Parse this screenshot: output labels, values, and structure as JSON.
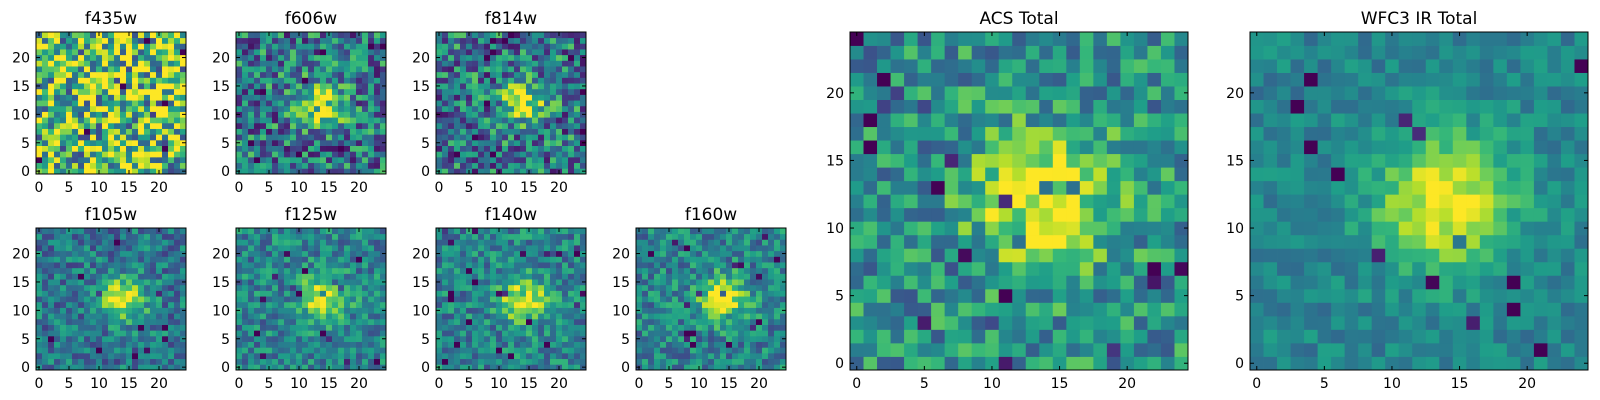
{
  "chart_data": [
    {
      "type": "heatmap",
      "title": "f435w",
      "xticks": [
        0,
        5,
        10,
        15,
        20
      ],
      "yticks": [
        0,
        5,
        10,
        15,
        20
      ],
      "xlim": [
        0,
        24
      ],
      "ylim": [
        0,
        24
      ],
      "grid_size": 25,
      "colormap": "viridis",
      "source_center": [
        14,
        12
      ],
      "peak_strength": 0.08,
      "noise": 0.5,
      "background_level": 0.7
    },
    {
      "type": "heatmap",
      "title": "f606w",
      "xticks": [
        0,
        5,
        10,
        15,
        20
      ],
      "yticks": [
        0,
        5,
        10,
        15,
        20
      ],
      "xlim": [
        0,
        24
      ],
      "ylim": [
        0,
        24
      ],
      "grid_size": 25,
      "colormap": "viridis",
      "source_center": [
        14,
        12
      ],
      "peak_strength": 0.55,
      "noise": 0.35,
      "background_level": 0.4
    },
    {
      "type": "heatmap",
      "title": "f814w",
      "xticks": [
        0,
        5,
        10,
        15,
        20
      ],
      "yticks": [
        0,
        5,
        10,
        15,
        20
      ],
      "xlim": [
        0,
        24
      ],
      "ylim": [
        0,
        24
      ],
      "grid_size": 25,
      "colormap": "viridis",
      "source_center": [
        14,
        12
      ],
      "peak_strength": 0.5,
      "noise": 0.35,
      "background_level": 0.4
    },
    {
      "type": "heatmap",
      "title": "f105w",
      "xticks": [
        0,
        5,
        10,
        15,
        20
      ],
      "yticks": [
        0,
        5,
        10,
        15,
        20
      ],
      "xlim": [
        0,
        24
      ],
      "ylim": [
        0,
        24
      ],
      "grid_size": 25,
      "colormap": "viridis",
      "source_center": [
        14,
        12
      ],
      "peak_strength": 0.6,
      "noise": 0.22,
      "background_level": 0.4
    },
    {
      "type": "heatmap",
      "title": "f125w",
      "xticks": [
        0,
        5,
        10,
        15,
        20
      ],
      "yticks": [
        0,
        5,
        10,
        15,
        20
      ],
      "xlim": [
        0,
        24
      ],
      "ylim": [
        0,
        24
      ],
      "grid_size": 25,
      "colormap": "viridis",
      "source_center": [
        14,
        12
      ],
      "peak_strength": 0.55,
      "noise": 0.22,
      "background_level": 0.45
    },
    {
      "type": "heatmap",
      "title": "f140w",
      "xticks": [
        0,
        5,
        10,
        15,
        20
      ],
      "yticks": [
        0,
        5,
        10,
        15,
        20
      ],
      "xlim": [
        0,
        24
      ],
      "ylim": [
        0,
        24
      ],
      "grid_size": 25,
      "colormap": "viridis",
      "source_center": [
        14,
        12
      ],
      "peak_strength": 0.6,
      "noise": 0.22,
      "background_level": 0.45
    },
    {
      "type": "heatmap",
      "title": "f160w",
      "xticks": [
        0,
        5,
        10,
        15,
        20
      ],
      "yticks": [
        0,
        5,
        10,
        15,
        20
      ],
      "xlim": [
        0,
        24
      ],
      "ylim": [
        0,
        24
      ],
      "grid_size": 25,
      "colormap": "viridis",
      "source_center": [
        14,
        12
      ],
      "peak_strength": 0.6,
      "noise": 0.22,
      "background_level": 0.45
    },
    {
      "type": "heatmap",
      "title": "ACS Total",
      "xticks": [
        0,
        5,
        10,
        15,
        20
      ],
      "yticks": [
        0,
        5,
        10,
        15,
        20
      ],
      "xlim": [
        0,
        24
      ],
      "ylim": [
        0,
        24
      ],
      "grid_size": 25,
      "colormap": "viridis",
      "source_center": [
        14,
        12
      ],
      "peak_strength": 0.5,
      "noise": 0.25,
      "background_level": 0.5
    },
    {
      "type": "heatmap",
      "title": "WFC3 IR Total",
      "xticks": [
        0,
        5,
        10,
        15,
        20
      ],
      "yticks": [
        0,
        5,
        10,
        15,
        20
      ],
      "xlim": [
        0,
        24
      ],
      "ylim": [
        0,
        24
      ],
      "grid_size": 25,
      "colormap": "viridis",
      "source_center": [
        14,
        12
      ],
      "peak_strength": 0.55,
      "noise": 0.12,
      "background_level": 0.45
    }
  ]
}
